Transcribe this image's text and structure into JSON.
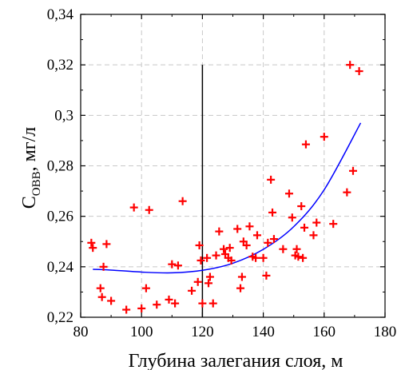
{
  "chart_data": {
    "type": "scatter",
    "title": "",
    "xlabel": "Глубина залегания слоя, м",
    "ylabel_main": "C",
    "ylabel_sub": "ОВВ",
    "ylabel_rest": ", мг/л",
    "xlim": [
      80,
      180
    ],
    "ylim": [
      0.22,
      0.34
    ],
    "x_ticks": [
      80,
      100,
      120,
      140,
      160,
      180
    ],
    "x_tick_labels": [
      "80",
      "100",
      "120",
      "140",
      "160",
      "180"
    ],
    "y_ticks": [
      0.22,
      0.24,
      0.26,
      0.28,
      0.3,
      0.32,
      0.34
    ],
    "y_tick_labels": [
      "0,22",
      "0,24",
      "0,26",
      "0,28",
      "0,3",
      "0,32",
      "0,34"
    ],
    "grid": true,
    "vertical_line_x": 120,
    "colors": {
      "points": "#ff0000",
      "trend": "#0000ff",
      "vline": "#000000",
      "grid": "#c8c8c8"
    },
    "points": [
      [
        83.5,
        0.2495
      ],
      [
        84,
        0.2475
      ],
      [
        86.5,
        0.2315
      ],
      [
        87,
        0.228
      ],
      [
        87.5,
        0.24
      ],
      [
        88.5,
        0.249
      ],
      [
        90,
        0.2265
      ],
      [
        95,
        0.223
      ],
      [
        97.5,
        0.2635
      ],
      [
        100,
        0.2235
      ],
      [
        101.5,
        0.2315
      ],
      [
        102.5,
        0.2625
      ],
      [
        105,
        0.225
      ],
      [
        109,
        0.227
      ],
      [
        110,
        0.241
      ],
      [
        111,
        0.2255
      ],
      [
        112,
        0.2405
      ],
      [
        113.5,
        0.266
      ],
      [
        116.5,
        0.2305
      ],
      [
        118.5,
        0.234
      ],
      [
        119,
        0.2485
      ],
      [
        119.5,
        0.2425
      ],
      [
        120,
        0.2255
      ],
      [
        121.5,
        0.2435
      ],
      [
        122,
        0.2335
      ],
      [
        122.5,
        0.236
      ],
      [
        123.5,
        0.2255
      ],
      [
        124.5,
        0.2445
      ],
      [
        125.5,
        0.254
      ],
      [
        127,
        0.247
      ],
      [
        127.5,
        0.245
      ],
      [
        128.5,
        0.2435
      ],
      [
        129,
        0.2475
      ],
      [
        129.5,
        0.2425
      ],
      [
        131.5,
        0.255
      ],
      [
        132.5,
        0.2315
      ],
      [
        133,
        0.236
      ],
      [
        133.5,
        0.25
      ],
      [
        134.5,
        0.2485
      ],
      [
        135.5,
        0.256
      ],
      [
        136.5,
        0.244
      ],
      [
        137.5,
        0.2435
      ],
      [
        138,
        0.2525
      ],
      [
        140,
        0.2435
      ],
      [
        141,
        0.2365
      ],
      [
        141.5,
        0.2495
      ],
      [
        142.5,
        0.2745
      ],
      [
        143,
        0.2615
      ],
      [
        143.5,
        0.251
      ],
      [
        146.5,
        0.247
      ],
      [
        148.5,
        0.269
      ],
      [
        149.5,
        0.2595
      ],
      [
        150.5,
        0.2445
      ],
      [
        151,
        0.247
      ],
      [
        151.5,
        0.244
      ],
      [
        152.5,
        0.264
      ],
      [
        153,
        0.2435
      ],
      [
        153.5,
        0.2555
      ],
      [
        154,
        0.2885
      ],
      [
        156.5,
        0.2525
      ],
      [
        157.5,
        0.2575
      ],
      [
        160,
        0.2915
      ],
      [
        163,
        0.257
      ],
      [
        167.5,
        0.2695
      ],
      [
        168.5,
        0.32
      ],
      [
        169.5,
        0.278
      ],
      [
        171.5,
        0.3175
      ]
    ],
    "trend": {
      "x": [
        84,
        90,
        100,
        110,
        120,
        130,
        140,
        150,
        160,
        172
      ],
      "y": [
        0.239,
        0.2387,
        0.2379,
        0.2376,
        0.2386,
        0.2414,
        0.2469,
        0.2559,
        0.2705,
        0.297
      ]
    }
  }
}
